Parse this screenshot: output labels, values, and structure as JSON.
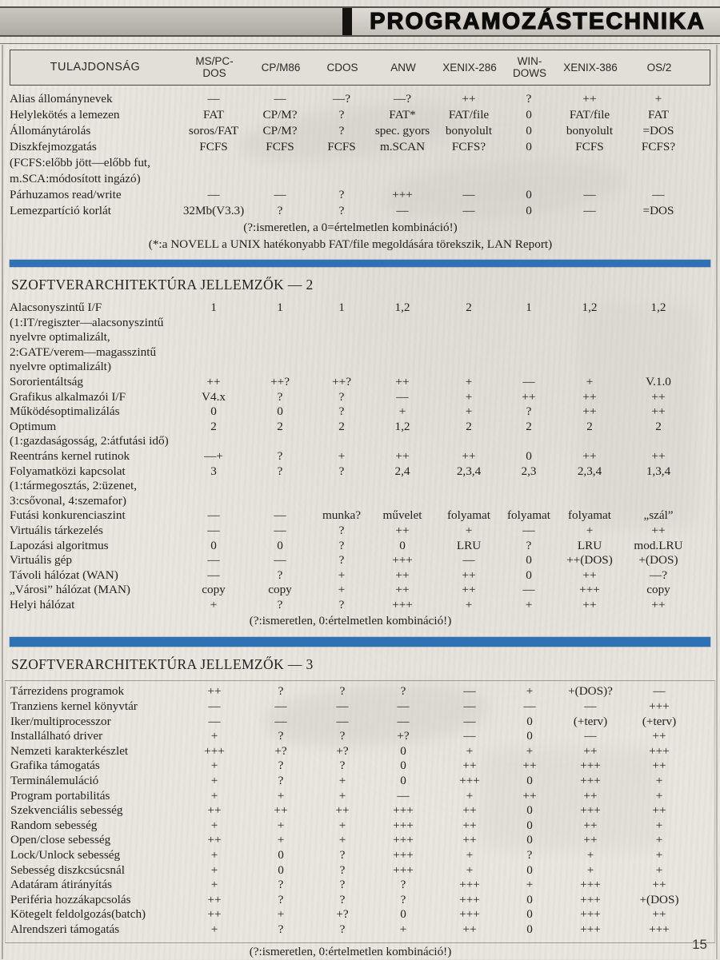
{
  "page": {
    "title": "PROGRAMOZÁSTECHNIKA",
    "page_number": "15"
  },
  "colors": {
    "accent_blue": "#2e72b6",
    "paper": "#e9e6e0",
    "text": "#23211e"
  },
  "columns": {
    "property_header": "TULAJDONSÁG",
    "os_names": [
      "MS/PC-\nDOS",
      "CP/M86",
      "CDOS",
      "ANW",
      "XENIX-286",
      "WIN-\nDOWS",
      "XENIX-386",
      "OS/2"
    ]
  },
  "table1": {
    "rows": [
      {
        "label": "Alias állománynevek",
        "values": [
          "—",
          "—",
          "—?",
          "—?",
          "++",
          "?",
          "++",
          "+"
        ]
      },
      {
        "label": "Helylekötés a lemezen",
        "values": [
          "FAT",
          "CP/M?",
          "?",
          "FAT*",
          "FAT/file",
          "0",
          "FAT/file",
          "FAT"
        ]
      },
      {
        "label": "Állománytárolás",
        "values": [
          "soros/FAT",
          "CP/M?",
          "?",
          "spec. gyors",
          "bonyolult",
          "0",
          "bonyolult",
          "=DOS"
        ]
      },
      {
        "label": "Diszkfejmozgatás",
        "values": [
          "FCFS",
          "FCFS",
          "FCFS",
          "m.SCAN",
          "FCFS?",
          "0",
          "FCFS",
          "FCFS?"
        ],
        "notes": [
          "(FCFS:előbb jött—előbb fut,",
          "m.SCA:módosított ingázó)"
        ]
      },
      {
        "label": "Párhuzamos read/write",
        "values": [
          "—",
          "—",
          "?",
          "+++",
          "—",
          "0",
          "—",
          "—"
        ]
      },
      {
        "label": "Lemezpartíció korlát",
        "values": [
          "32Mb(V3.3)",
          "?",
          "?",
          "—",
          "—",
          "0",
          "—",
          "=DOS"
        ]
      }
    ],
    "footnotes": [
      "(?:ismeretlen, a 0=értelmetlen kombináció!)",
      "(*:a NOVELL a UNIX hatékonyabb FAT/file megoldására törekszik, LAN Report)"
    ]
  },
  "section2": {
    "title": "SZOFTVERARCHITEKTÚRA JELLEMZŐK — 2",
    "rows": [
      {
        "label": "Alacsonyszintű I/F",
        "values": [
          "1",
          "1",
          "1",
          "1,2",
          "2",
          "1",
          "1,2",
          "1,2"
        ],
        "notes": [
          "(1:IT/regiszter—alacsonyszintű",
          "nyelvre optimalizált,",
          "2:GATE/verem—magasszintű",
          "nyelvre optimalizált)"
        ]
      },
      {
        "label": "Sororientáltság",
        "values": [
          "++",
          "++?",
          "++?",
          "++",
          "+",
          "—",
          "+",
          "V.1.0"
        ]
      },
      {
        "label": "Grafikus alkalmazói I/F",
        "values": [
          "V4.x",
          "?",
          "?",
          "—",
          "+",
          "++",
          "++",
          "++"
        ]
      },
      {
        "label": "Működésoptimalizálás",
        "values": [
          "0",
          "0",
          "?",
          "+",
          "+",
          "?",
          "++",
          "++"
        ]
      },
      {
        "label": "Optimum",
        "values": [
          "2",
          "2",
          "2",
          "1,2",
          "2",
          "2",
          "2",
          "2"
        ],
        "notes": [
          "(1:gazdaságosság, 2:átfutási idő)"
        ]
      },
      {
        "label": "Reentráns kernel rutinok",
        "values": [
          "—+",
          "?",
          "+",
          "++",
          "++",
          "0",
          "++",
          "++"
        ]
      },
      {
        "label": "Folyamatközi kapcsolat",
        "values": [
          "3",
          "?",
          "?",
          "2,4",
          "2,3,4",
          "2,3",
          "2,3,4",
          "1,3,4"
        ],
        "notes": [
          "(1:tármegosztás, 2:üzenet,",
          "3:csővonal, 4:szemafor)"
        ]
      },
      {
        "label": "Futási konkurenciaszint",
        "values": [
          "—",
          "—",
          "munka?",
          "művelet",
          "folyamat",
          "folyamat",
          "folyamat",
          "„szál”"
        ]
      },
      {
        "label": "Virtuális tárkezelés",
        "values": [
          "—",
          "—",
          "?",
          "++",
          "+",
          "—",
          "+",
          "++"
        ]
      },
      {
        "label": "Lapozási algoritmus",
        "values": [
          "0",
          "0",
          "?",
          "0",
          "LRU",
          "?",
          "LRU",
          "mod.LRU"
        ]
      },
      {
        "label": "Virtuális gép",
        "values": [
          "—",
          "—",
          "?",
          "+++",
          "—",
          "0",
          "++(DOS)",
          "+(DOS)"
        ]
      },
      {
        "label": "Távoli hálózat (WAN)",
        "values": [
          "—",
          "?",
          "+",
          "++",
          "++",
          "0",
          "++",
          "—?"
        ]
      },
      {
        "label": "„Városi” hálózat (MAN)",
        "values": [
          "copy",
          "copy",
          "+",
          "++",
          "++",
          "—",
          "+++",
          "copy"
        ]
      },
      {
        "label": "Helyi hálózat",
        "values": [
          "+",
          "?",
          "?",
          "+++",
          "+",
          "+",
          "++",
          "++"
        ]
      }
    ],
    "footnote": "(?:ismeretlen, 0:értelmetlen kombináció!)"
  },
  "section3": {
    "title": "SZOFTVERARCHITEKTÚRA JELLEMZŐK — 3",
    "rows": [
      {
        "label": "Tárrezidens programok",
        "values": [
          "++",
          "?",
          "?",
          "?",
          "—",
          "+",
          "+(DOS)?",
          "—"
        ]
      },
      {
        "label": "Tranziens kernel könyvtár",
        "values": [
          "—",
          "—",
          "—",
          "—",
          "—",
          "—",
          "—",
          "+++"
        ]
      },
      {
        "label": "Iker/multiprocesszor",
        "values": [
          "—",
          "—",
          "—",
          "—",
          "—",
          "0",
          "(+terv)",
          "(+terv)"
        ]
      },
      {
        "label": "Installálható driver",
        "values": [
          "+",
          "?",
          "?",
          "+?",
          "—",
          "0",
          "—",
          "++"
        ]
      },
      {
        "label": "Nemzeti karakterkészlet",
        "values": [
          "+++",
          "+?",
          "+?",
          "0",
          "+",
          "+",
          "++",
          "+++"
        ]
      },
      {
        "label": "Grafika támogatás",
        "values": [
          "+",
          "?",
          "?",
          "0",
          "++",
          "++",
          "+++",
          "++"
        ]
      },
      {
        "label": "Terminálemuláció",
        "values": [
          "+",
          "?",
          "+",
          "0",
          "+++",
          "0",
          "+++",
          "+"
        ]
      },
      {
        "label": "Program portabilitás",
        "values": [
          "+",
          "+",
          "+",
          "—",
          "+",
          "++",
          "++",
          "+"
        ]
      },
      {
        "label": "Szekvenciális sebesség",
        "values": [
          "++",
          "++",
          "++",
          "+++",
          "++",
          "0",
          "+++",
          "++"
        ]
      },
      {
        "label": "Random sebesség",
        "values": [
          "+",
          "+",
          "+",
          "+++",
          "++",
          "0",
          "++",
          "+"
        ]
      },
      {
        "label": "Open/close sebesség",
        "values": [
          "++",
          "+",
          "+",
          "+++",
          "++",
          "0",
          "++",
          "+"
        ]
      },
      {
        "label": "Lock/Unlock sebesség",
        "values": [
          "+",
          "0",
          "?",
          "+++",
          "+",
          "?",
          "+",
          "+"
        ]
      },
      {
        "label": "Sebesség diszkcsúcsnál",
        "values": [
          "+",
          "0",
          "?",
          "+++",
          "+",
          "0",
          "+",
          "+"
        ]
      },
      {
        "label": "Adatáram átirányítás",
        "values": [
          "+",
          "?",
          "?",
          "?",
          "+++",
          "+",
          "+++",
          "++"
        ]
      },
      {
        "label": "Periféria hozzákapcsolás",
        "values": [
          "++",
          "?",
          "?",
          "?",
          "+++",
          "0",
          "+++",
          "+(DOS)"
        ]
      },
      {
        "label": "Kötegelt feldolgozás(batch)",
        "values": [
          "++",
          "+",
          "+?",
          "0",
          "+++",
          "0",
          "+++",
          "++"
        ]
      },
      {
        "label": "Alrendszeri támogatás",
        "values": [
          "+",
          "?",
          "?",
          "+",
          "++",
          "0",
          "+++",
          "+++"
        ]
      }
    ],
    "footnote": "(?:ismeretlen, 0:értelmetlen kombináció!)"
  }
}
